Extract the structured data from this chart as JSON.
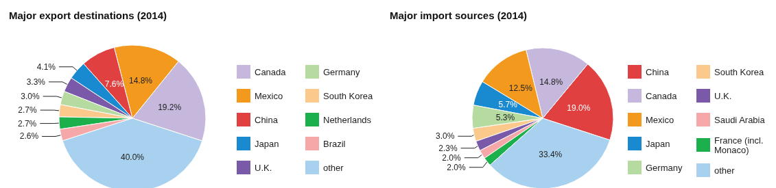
{
  "chart_data": [
    {
      "type": "pie",
      "title": "Major export destinations (2014)",
      "categories": [
        "Canada",
        "Mexico",
        "China",
        "Japan",
        "U.K.",
        "Germany",
        "South Korea",
        "Netherlands",
        "Brazil",
        "other"
      ],
      "values": [
        19.2,
        14.8,
        7.6,
        4.1,
        3.3,
        3.0,
        2.7,
        2.7,
        2.6,
        40.0
      ],
      "value_labels": [
        "19.2%",
        "14.8%",
        "7.6%",
        "4.1%",
        "3.3%",
        "3.0%",
        "2.7%",
        "2.7%",
        "2.6%",
        "40.0%"
      ],
      "colors": [
        "#c5b8dc",
        "#f39a1e",
        "#e0403f",
        "#1a8ad0",
        "#7a5aa8",
        "#b5dba0",
        "#fcc98c",
        "#1cb04c",
        "#f6a8a8",
        "#a7d1ee"
      ],
      "legend": "right"
    },
    {
      "type": "pie",
      "title": "Major import sources (2014)",
      "categories": [
        "China",
        "Canada",
        "Mexico",
        "Japan",
        "Germany",
        "South Korea",
        "U.K.",
        "Saudi Arabia",
        "France (incl. Monaco)",
        "other"
      ],
      "values": [
        19.0,
        14.8,
        12.5,
        5.7,
        5.3,
        3.0,
        2.3,
        2.0,
        2.0,
        33.4
      ],
      "value_labels": [
        "19.0%",
        "14.8%",
        "12.5%",
        "5.7%",
        "5.3%",
        "3.0%",
        "2.3%",
        "2.0%",
        "2.0%",
        "33.4%"
      ],
      "colors": [
        "#e0403f",
        "#c5b8dc",
        "#f39a1e",
        "#1a8ad0",
        "#b5dba0",
        "#fcc98c",
        "#7a5aa8",
        "#f6a8a8",
        "#1cb04c",
        "#a7d1ee"
      ],
      "legend": "right"
    }
  ]
}
